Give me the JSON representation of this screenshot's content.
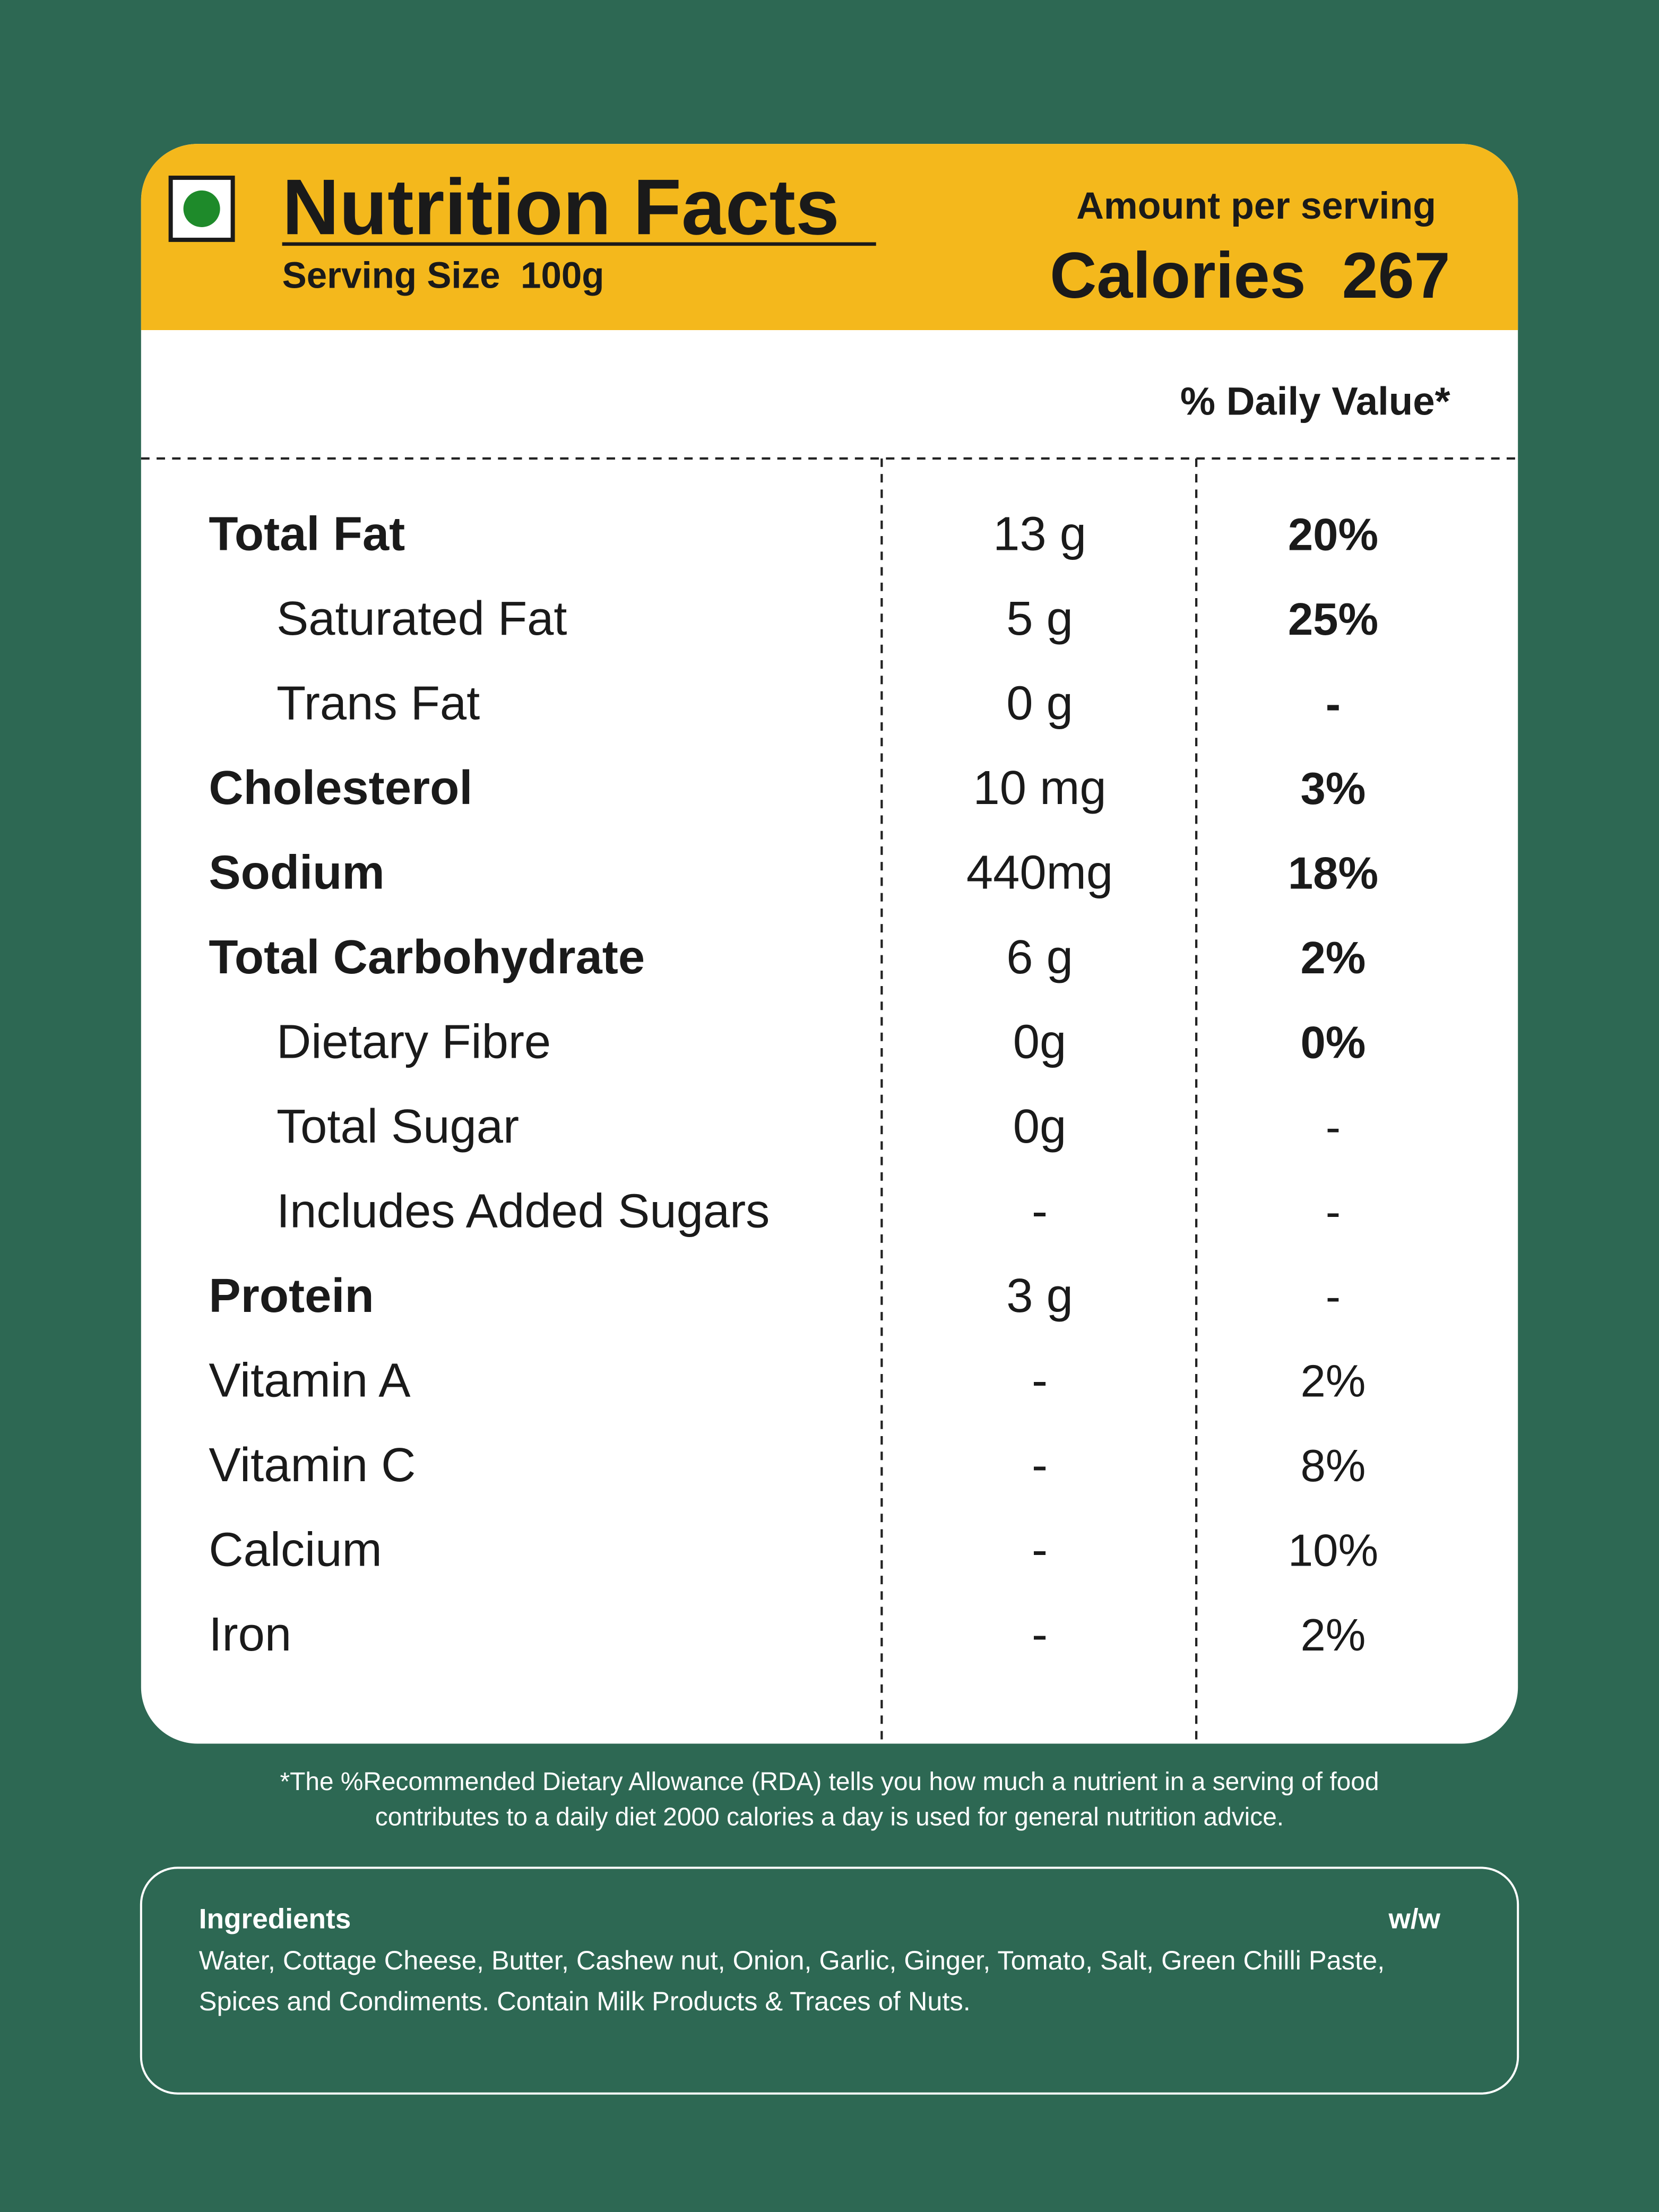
{
  "header": {
    "title": "Nutrition Facts",
    "serving_size": "Serving Size  100g",
    "amount_per_serving": "Amount per serving",
    "calories": "Calories  267"
  },
  "daily_value_header": "% Daily Value*",
  "table": {
    "rows": [
      [
        "Total Fat",
        "13 g",
        "20%"
      ],
      [
        "Saturated Fat",
        "5 g",
        "25%"
      ],
      [
        "Trans Fat",
        "0 g",
        "-"
      ],
      [
        "Cholesterol",
        "10 mg",
        "3%"
      ],
      [
        "Sodium",
        "440mg",
        "18%"
      ],
      [
        "Total Carbohydrate",
        "6 g",
        "2%"
      ],
      [
        "Dietary Fibre",
        "0g",
        "0%"
      ],
      [
        "Total Sugar",
        "0g",
        "-"
      ],
      [
        "Includes Added Sugars",
        "-",
        "-"
      ],
      [
        "Protein",
        "3 g",
        "-"
      ],
      [
        "Vitamin A",
        "-",
        "2%"
      ],
      [
        "Vitamin C",
        "-",
        "8%"
      ],
      [
        "Calcium",
        "-",
        "10%"
      ],
      [
        "Iron",
        "-",
        "2%"
      ]
    ]
  },
  "footnote": [
    "*The %Recommended Dietary Allowance (RDA) tells you how much a nutrient in a serving of food",
    "contributes to a daily diet 2000 calories a day is used for general nutrition advice."
  ],
  "ingredients": {
    "title": "Ingredients",
    "unit": "w/w",
    "lines": [
      "Water, Cottage Cheese, Butter, Cashew nut, Onion, Garlic, Ginger, Tomato, Salt, Green Chilli Paste,",
      "Spices and Condiments. Contain Milk Products & Traces of Nuts."
    ]
  }
}
